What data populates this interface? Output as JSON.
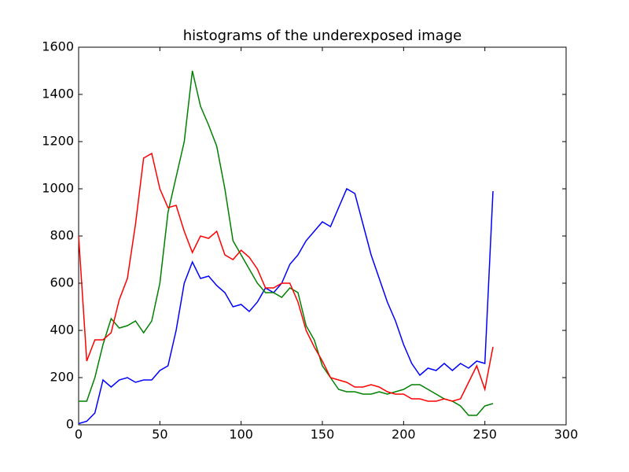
{
  "chart_data": {
    "type": "line",
    "title": "histograms of the underexposed image",
    "x": [
      0,
      5,
      10,
      15,
      20,
      25,
      30,
      35,
      40,
      45,
      50,
      55,
      60,
      65,
      70,
      75,
      80,
      85,
      90,
      95,
      100,
      105,
      110,
      115,
      120,
      125,
      130,
      135,
      140,
      145,
      150,
      155,
      160,
      165,
      170,
      175,
      180,
      185,
      190,
      195,
      200,
      205,
      210,
      215,
      220,
      225,
      230,
      235,
      240,
      245,
      250,
      255
    ],
    "series": [
      {
        "color": "#0000ff",
        "values": [
          5,
          15,
          50,
          190,
          160,
          190,
          200,
          180,
          190,
          190,
          230,
          250,
          400,
          600,
          690,
          620,
          630,
          590,
          560,
          500,
          510,
          480,
          520,
          580,
          560,
          600,
          680,
          720,
          780,
          820,
          860,
          840,
          920,
          1000,
          980,
          850,
          720,
          620,
          520,
          440,
          340,
          260,
          210,
          240,
          230,
          260,
          230,
          260,
          240,
          270,
          260,
          990
        ]
      },
      {
        "color": "#008000",
        "values": [
          100,
          100,
          200,
          340,
          450,
          410,
          420,
          440,
          390,
          440,
          600,
          900,
          1050,
          1200,
          1500,
          1350,
          1270,
          1180,
          1000,
          780,
          720,
          660,
          600,
          560,
          560,
          540,
          580,
          560,
          420,
          360,
          250,
          200,
          150,
          140,
          140,
          130,
          130,
          140,
          130,
          140,
          150,
          170,
          170,
          150,
          130,
          110,
          100,
          80,
          40,
          40,
          80,
          90
        ]
      },
      {
        "color": "#ff0000",
        "values": [
          800,
          270,
          360,
          360,
          390,
          530,
          620,
          850,
          1130,
          1150,
          1000,
          920,
          930,
          820,
          730,
          800,
          790,
          820,
          720,
          700,
          740,
          710,
          660,
          580,
          580,
          600,
          600,
          520,
          400,
          330,
          270,
          200,
          190,
          180,
          160,
          160,
          170,
          160,
          140,
          130,
          130,
          110,
          110,
          100,
          100,
          110,
          100,
          110,
          180,
          250,
          150,
          330
        ]
      }
    ],
    "xlim": [
      0,
      300
    ],
    "xticks": [
      0,
      50,
      100,
      150,
      200,
      250,
      300
    ],
    "ylim": [
      0,
      1600
    ],
    "yticks": [
      0,
      200,
      400,
      600,
      800,
      1000,
      1200,
      1400,
      1600
    ]
  }
}
